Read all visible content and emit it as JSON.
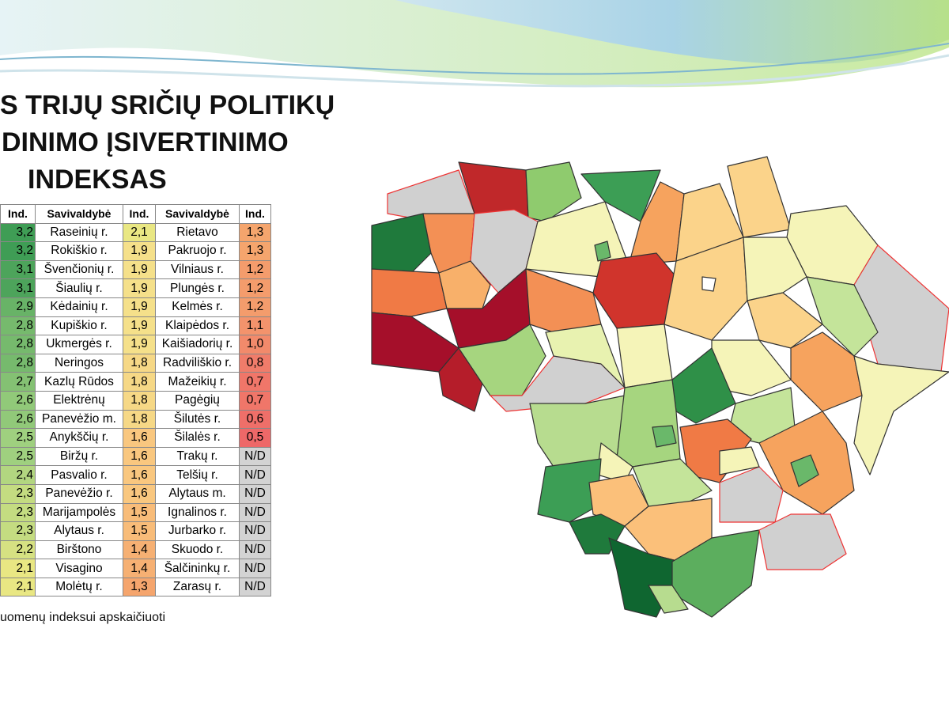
{
  "header": {
    "title_lines": [
      "S TRIJŲ SRIČIŲ POLITIKŲ",
      "DINIMO ĮSIVERTINIMO",
      "INDEKSAS"
    ]
  },
  "table": {
    "columns": [
      "Ind.",
      "Savivaldybė",
      "Ind.",
      "Savivaldybė",
      "Ind."
    ],
    "rows": [
      [
        "3,2",
        "Raseinių r.",
        "2,1",
        "Rietavo",
        "1,3"
      ],
      [
        "3,2",
        "Rokiškio r.",
        "1,9",
        "Pakruojo r.",
        "1,3"
      ],
      [
        "3,1",
        "Švenčionių r.",
        "1,9",
        "Vilniaus r.",
        "1,2"
      ],
      [
        "3,1",
        "Šiaulių r.",
        "1,9",
        "Plungės r.",
        "1,2"
      ],
      [
        "2,9",
        "Kėdainių r.",
        "1,9",
        "Kelmės r.",
        "1,2"
      ],
      [
        "2,8",
        "Kupiškio r.",
        "1,9",
        "Klaipėdos r.",
        "1,1"
      ],
      [
        "2,8",
        "Ukmergės r.",
        "1,9",
        "Kaišiadorių r.",
        "1,0"
      ],
      [
        "2,8",
        "Neringos",
        "1,8",
        "Radviliškio r.",
        "0,8"
      ],
      [
        "2,7",
        "Kazlų Rūdos",
        "1,8",
        "Mažeikių r.",
        "0,7"
      ],
      [
        "2,6",
        "Elektrėnų",
        "1,8",
        "Pagėgių",
        "0,7"
      ],
      [
        "2,6",
        "Panevėžio m.",
        "1,8",
        "Šilutės r.",
        "0,6"
      ],
      [
        "2,5",
        "Anykščių r.",
        "1,6",
        "Šilalės r.",
        "0,5"
      ],
      [
        "2,5",
        "Biržų r.",
        "1,6",
        "Trakų r.",
        "N/D"
      ],
      [
        "2,4",
        "Pasvalio r.",
        "1,6",
        "Telšių r.",
        "N/D"
      ],
      [
        "2,3",
        "Panevėžio r.",
        "1,6",
        "Alytaus m.",
        "N/D"
      ],
      [
        "2,3",
        "Marijampolės",
        "1,5",
        "Ignalinos r.",
        "N/D"
      ],
      [
        "2,3",
        "Alytaus r.",
        "1,5",
        "Jurbarko r.",
        "N/D"
      ],
      [
        "2,2",
        "Birštono",
        "1,4",
        "Skuodo r.",
        "N/D"
      ],
      [
        "2,1",
        "Visagino",
        "1,4",
        "Šalčininkų r.",
        "N/D"
      ],
      [
        "2,1",
        "Molėtų r.",
        "1,3",
        "Zarasų r.",
        "N/D"
      ]
    ]
  },
  "footnote": "uomenų indeksui apskaičiuoti"
}
